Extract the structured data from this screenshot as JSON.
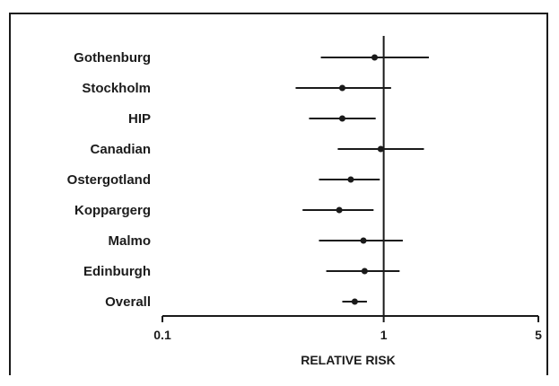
{
  "chart_data": {
    "type": "forest",
    "xscale": "log",
    "xlim": [
      0.1,
      5
    ],
    "xticks": [
      0.1,
      1,
      5
    ],
    "xtick_labels": [
      "0.1",
      "1",
      "5"
    ],
    "xlabel": "RELATIVE RISK",
    "reference_line": 1,
    "rows": [
      {
        "label": "Gothenburg",
        "rr": 0.91,
        "lo": 0.52,
        "hi": 1.6
      },
      {
        "label": "Stockholm",
        "rr": 0.65,
        "lo": 0.4,
        "hi": 1.08
      },
      {
        "label": "HIP",
        "rr": 0.65,
        "lo": 0.46,
        "hi": 0.92
      },
      {
        "label": "Canadian",
        "rr": 0.97,
        "lo": 0.62,
        "hi": 1.52
      },
      {
        "label": "Ostergotland",
        "rr": 0.71,
        "lo": 0.51,
        "hi": 0.96
      },
      {
        "label": "Koppargerg",
        "rr": 0.63,
        "lo": 0.43,
        "hi": 0.9
      },
      {
        "label": "Malmo",
        "rr": 0.81,
        "lo": 0.51,
        "hi": 1.22
      },
      {
        "label": "Edinburgh",
        "rr": 0.82,
        "lo": 0.55,
        "hi": 1.18
      },
      {
        "label": "Overall",
        "rr": 0.74,
        "lo": 0.65,
        "hi": 0.84
      }
    ]
  }
}
